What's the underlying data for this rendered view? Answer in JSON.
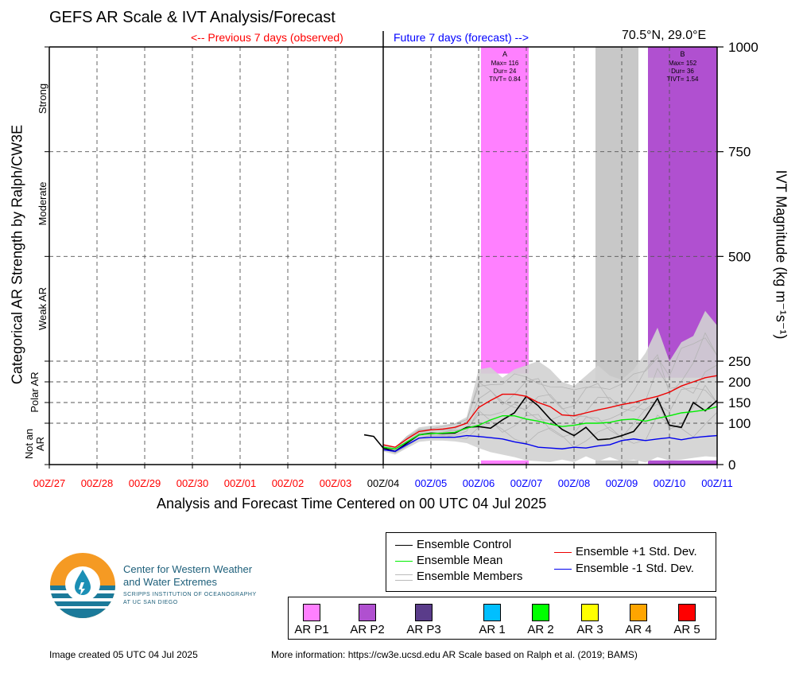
{
  "header": {
    "title": "GEFS AR Scale & IVT Analysis/Forecast",
    "previous_label": "<-- Previous 7 days (observed)",
    "future_label": "Future 7 days (forecast) -->",
    "location": "70.5°N, 29.0°E"
  },
  "axes": {
    "x_title": "Analysis and Forecast Time Centered on 00 UTC 04 Jul 2025",
    "y_left_title": "Categorical AR Strength by Ralph/CW3E",
    "y_right_title": "IVT Magnitude (kg m⁻¹s⁻¹)",
    "categories": [
      "Strong",
      "Moderate",
      "Weak AR",
      "Polar AR",
      "Not an AR"
    ]
  },
  "chart_data": {
    "type": "line",
    "title": "GEFS AR Scale & IVT Analysis/Forecast",
    "xlabel": "Analysis and Forecast Time Centered on 00 UTC 04 Jul 2025",
    "ylabel": "IVT Magnitude (kg m⁻¹s⁻¹)",
    "x_ticks": [
      "00Z/27",
      "00Z/28",
      "00Z/29",
      "00Z/30",
      "00Z/01",
      "00Z/02",
      "00Z/03",
      "00Z/04",
      "00Z/05",
      "00Z/06",
      "00Z/07",
      "00Z/08",
      "00Z/09",
      "00Z/10",
      "00Z/11"
    ],
    "x_tick_colors": [
      "#ff0000",
      "#ff0000",
      "#ff0000",
      "#ff0000",
      "#ff0000",
      "#ff0000",
      "#ff0000",
      "#000000",
      "#0000ff",
      "#0000ff",
      "#0000ff",
      "#0000ff",
      "#0000ff",
      "#0000ff",
      "#0000ff"
    ],
    "x_range_days": [
      -7,
      7
    ],
    "y_ticks": [
      0,
      100,
      150,
      200,
      250,
      500,
      750,
      1000
    ],
    "y_range": [
      0,
      1000
    ],
    "analysis_day": 0,
    "bands": [
      {
        "start": 2.05,
        "end": 3.05,
        "top": 220,
        "color": "#ff80ff",
        "label": "A",
        "info": [
          "Max= 116",
          "Dur= 24",
          "TIVT= 0.84"
        ]
      },
      {
        "start": 4.45,
        "end": 5.35,
        "top": 200,
        "color": "#c8c8c8",
        "label": "",
        "info": []
      },
      {
        "start": 5.55,
        "end": 7.0,
        "top": 210,
        "color": "#b050d0",
        "label": "B",
        "info": [
          "Max= 152",
          "Dur= 36",
          "TIVT= 1.54"
        ]
      }
    ],
    "series": [
      {
        "name": "Ensemble Control",
        "color": "#000000",
        "x": [
          -0.4,
          -0.2,
          0,
          0.25,
          0.5,
          0.75,
          1,
          1.25,
          1.5,
          1.75,
          2,
          2.25,
          2.5,
          2.75,
          3,
          3.25,
          3.5,
          3.75,
          4,
          4.25,
          4.5,
          4.75,
          5,
          5.25,
          5.5,
          5.75,
          6,
          6.25,
          6.5,
          6.75,
          7
        ],
        "y": [
          72,
          68,
          40,
          32,
          52,
          72,
          76,
          75,
          76,
          90,
          92,
          88,
          108,
          125,
          165,
          142,
          110,
          85,
          70,
          90,
          60,
          62,
          70,
          80,
          115,
          160,
          95,
          90,
          150,
          130,
          155
        ]
      },
      {
        "name": "Ensemble Mean",
        "color": "#00ee00",
        "x": [
          0,
          0.25,
          0.5,
          0.75,
          1,
          1.25,
          1.5,
          1.75,
          2,
          2.25,
          2.5,
          2.75,
          3,
          3.25,
          3.5,
          3.75,
          4,
          4.25,
          4.5,
          4.75,
          5,
          5.25,
          5.5,
          5.75,
          6,
          6.25,
          6.5,
          6.75,
          7
        ],
        "y": [
          42,
          38,
          55,
          72,
          75,
          76,
          78,
          88,
          95,
          108,
          118,
          118,
          110,
          105,
          98,
          92,
          95,
          100,
          100,
          102,
          108,
          110,
          105,
          112,
          118,
          125,
          128,
          132,
          140
        ]
      },
      {
        "name": "Ensemble +1 Std. Dev.",
        "color": "#ee0000",
        "x": [
          0,
          0.25,
          0.5,
          0.75,
          1,
          1.25,
          1.5,
          1.75,
          2,
          2.25,
          2.5,
          2.75,
          3,
          3.25,
          3.5,
          3.75,
          4,
          4.25,
          4.5,
          4.75,
          5,
          5.25,
          5.5,
          5.75,
          6,
          6.25,
          6.5,
          6.75,
          7
        ],
        "y": [
          48,
          42,
          62,
          80,
          84,
          86,
          90,
          100,
          138,
          155,
          170,
          170,
          165,
          150,
          140,
          120,
          118,
          125,
          132,
          138,
          145,
          150,
          158,
          165,
          175,
          190,
          200,
          210,
          215
        ]
      },
      {
        "name": "Ensemble -1 Std. Dev.",
        "color": "#0000ee",
        "x": [
          0,
          0.25,
          0.5,
          0.75,
          1,
          1.25,
          1.5,
          1.75,
          2,
          2.25,
          2.5,
          2.75,
          3,
          3.25,
          3.5,
          3.75,
          4,
          4.25,
          4.5,
          4.75,
          5,
          5.25,
          5.5,
          5.75,
          6,
          6.25,
          6.5,
          6.75,
          7
        ],
        "y": [
          36,
          32,
          48,
          64,
          66,
          66,
          66,
          70,
          68,
          65,
          62,
          55,
          50,
          42,
          40,
          38,
          42,
          40,
          45,
          48,
          58,
          62,
          58,
          62,
          65,
          60,
          65,
          68,
          70
        ]
      }
    ],
    "members_label": "Ensemble Members",
    "members_color": "#b4b4b4",
    "members_max": [
      48,
      42,
      70,
      90,
      94,
      96,
      100,
      115,
      230,
      235,
      210,
      230,
      240,
      250,
      230,
      200,
      190,
      215,
      240,
      215,
      205,
      230,
      270,
      330,
      250,
      295,
      310,
      370,
      335
    ],
    "members_min": [
      32,
      24,
      40,
      55,
      58,
      58,
      56,
      52,
      40,
      30,
      24,
      18,
      10,
      8,
      6,
      12,
      6,
      20,
      8,
      18,
      8,
      12,
      5,
      18,
      10,
      12,
      16,
      20,
      18
    ]
  },
  "legend": {
    "control": "Ensemble Control",
    "mean": "Ensemble Mean",
    "members": "Ensemble Members",
    "plus_std": "Ensemble +1 Std. Dev.",
    "minus_std": "Ensemble -1 Std. Dev.",
    "ar_levels": [
      {
        "label": "AR P1",
        "color": "#ff80ff"
      },
      {
        "label": "AR P2",
        "color": "#b050d0"
      },
      {
        "label": "AR P3",
        "color": "#5a3c8a"
      },
      {
        "label": "AR 1",
        "color": "#00bfff"
      },
      {
        "label": "AR 2",
        "color": "#00ff00"
      },
      {
        "label": "AR 3",
        "color": "#ffff00"
      },
      {
        "label": "AR 4",
        "color": "#ffa500"
      },
      {
        "label": "AR 5",
        "color": "#ff0000"
      }
    ]
  },
  "logo": {
    "name_line1": "Center for Western Weather",
    "name_line2": "and Water Extremes",
    "sub_line1": "SCRIPPS INSTITUTION OF OCEANOGRAPHY",
    "sub_line2": "AT UC SAN DIEGO"
  },
  "footer": {
    "created": "Image created 05 UTC 04 Jul 2025",
    "more_info": "More information: https://cw3e.ucsd.edu AR Scale based on Ralph et al. (2019; BAMS)"
  }
}
